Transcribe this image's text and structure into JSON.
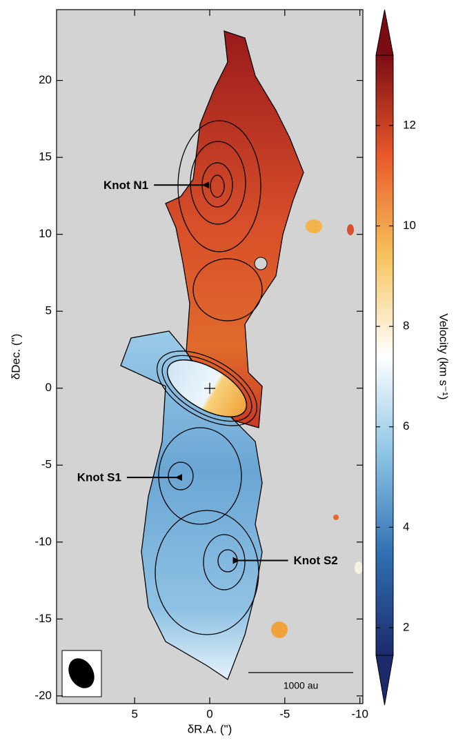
{
  "chart_data": {
    "type": "image-map",
    "xlabel": "δR.A. (\")",
    "ylabel": "δDec. (\")",
    "xlim": [
      10.2,
      -10.2
    ],
    "xticks": [
      5,
      0,
      -5,
      -10
    ],
    "ylim": [
      -20.5,
      24.6
    ],
    "yticks": [
      -20,
      -15,
      -10,
      -5,
      0,
      5,
      10,
      15,
      20
    ],
    "colorbar": {
      "label": "Velocity (km s⁻¹)",
      "clim": [
        1.45,
        13.4
      ],
      "ticks": [
        2,
        4,
        6,
        8,
        10,
        12
      ],
      "colormap": [
        "#1b2a6b",
        "#2f6fb0",
        "#8cc4e6",
        "#ffffff",
        "#f6c35c",
        "#e8582a",
        "#7a0d14"
      ]
    },
    "annotations": [
      {
        "text": "Knot N1",
        "x": 0.5,
        "y": 13.2
      },
      {
        "text": "Knot S1",
        "x": 2.3,
        "y": -5.8
      },
      {
        "text": "Knot S2",
        "x": -2.0,
        "y": -11.2
      }
    ],
    "scale_bar": "1000 au"
  }
}
